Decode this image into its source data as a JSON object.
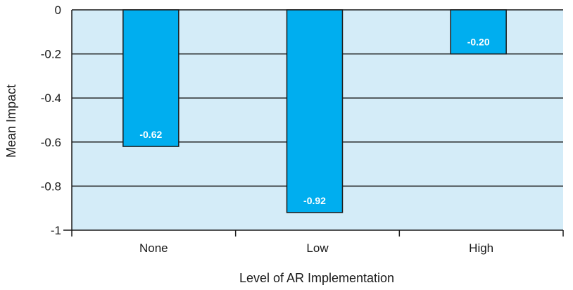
{
  "chart_data": {
    "type": "bar",
    "title": "",
    "xlabel": "Level of AR Implementation",
    "ylabel": "Mean Impact",
    "categories": [
      "None",
      "Low",
      "High"
    ],
    "values": [
      -0.62,
      -0.92,
      -0.2
    ],
    "data_labels": [
      "-0.62",
      "-0.92",
      "-0.20"
    ],
    "ylim": [
      -1,
      0
    ],
    "yticks": [
      0,
      -0.2,
      -0.4,
      -0.6,
      -0.8,
      -1
    ],
    "ytick_labels": [
      "0",
      "-0.2",
      "-0.4",
      "-0.6",
      "-0.8",
      "-1"
    ],
    "grid": true,
    "legend": "none",
    "colors": {
      "plot_background": "#d4ecf8",
      "bar_fill": "#00aeef",
      "bar_stroke": "#1a1a1a",
      "grid": "#1a1a1a"
    }
  }
}
